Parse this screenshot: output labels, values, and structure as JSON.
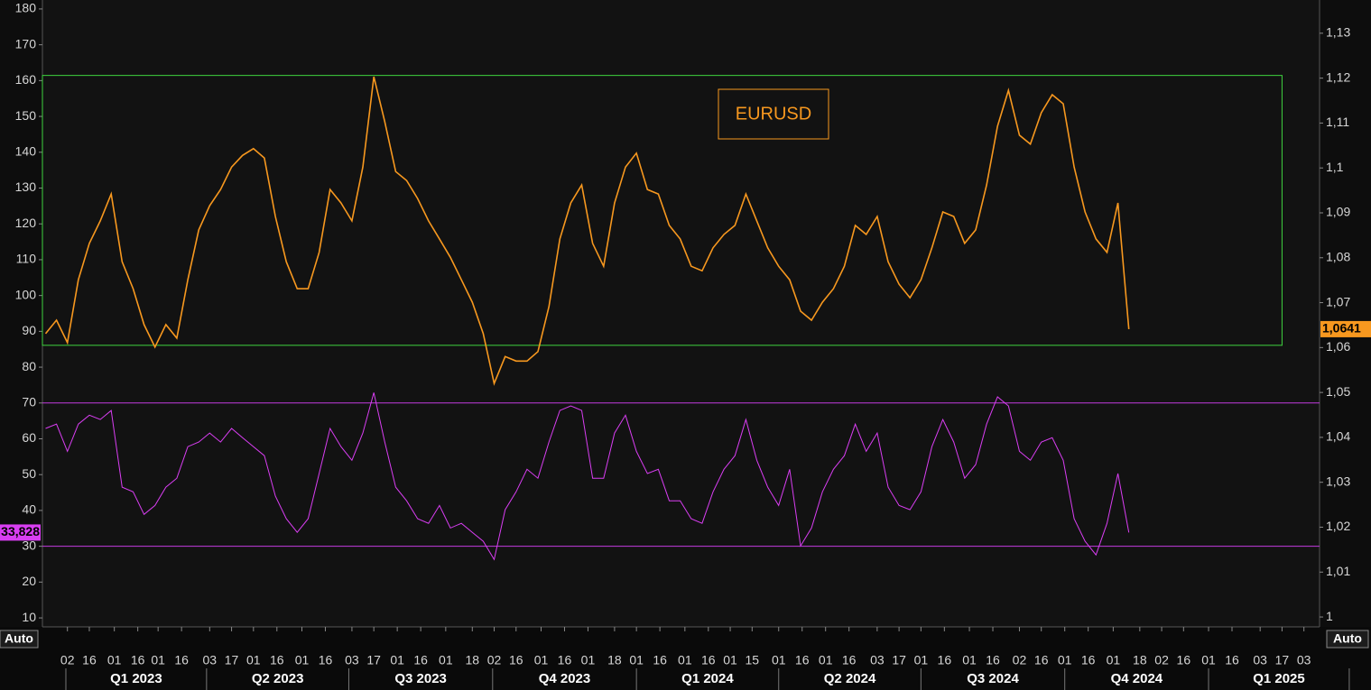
{
  "chart_data": {
    "type": "line",
    "x": [
      "2022-12-19",
      "2022-12-26",
      "2023-01-02",
      "2023-01-09",
      "2023-01-16",
      "2023-01-23",
      "2023-01-30",
      "2023-02-06",
      "2023-02-13",
      "2023-02-20",
      "2023-02-27",
      "2023-03-06",
      "2023-03-13",
      "2023-03-20",
      "2023-03-27",
      "2023-04-03",
      "2023-04-10",
      "2023-04-17",
      "2023-04-24",
      "2023-05-01",
      "2023-05-08",
      "2023-05-15",
      "2023-05-22",
      "2023-05-29",
      "2023-06-05",
      "2023-06-12",
      "2023-06-19",
      "2023-06-26",
      "2023-07-03",
      "2023-07-10",
      "2023-07-17",
      "2023-07-24",
      "2023-07-31",
      "2023-08-07",
      "2023-08-14",
      "2023-08-21",
      "2023-08-28",
      "2023-09-04",
      "2023-09-11",
      "2023-09-18",
      "2023-09-25",
      "2023-10-02",
      "2023-10-09",
      "2023-10-16",
      "2023-10-23",
      "2023-10-30",
      "2023-11-06",
      "2023-11-13",
      "2023-11-20",
      "2023-11-27",
      "2023-12-04",
      "2023-12-11",
      "2023-12-18",
      "2023-12-25",
      "2024-01-01",
      "2024-01-08",
      "2024-01-15",
      "2024-01-22",
      "2024-01-29",
      "2024-02-05",
      "2024-02-12",
      "2024-02-19",
      "2024-02-26",
      "2024-03-04",
      "2024-03-11",
      "2024-03-18",
      "2024-03-25",
      "2024-04-01",
      "2024-04-08",
      "2024-04-15",
      "2024-04-22",
      "2024-04-29",
      "2024-05-06",
      "2024-05-13",
      "2024-05-20",
      "2024-05-27",
      "2024-06-03",
      "2024-06-10",
      "2024-06-17",
      "2024-06-24",
      "2024-07-01",
      "2024-07-08",
      "2024-07-15",
      "2024-07-22",
      "2024-07-29",
      "2024-08-05",
      "2024-08-12",
      "2024-08-19",
      "2024-08-26",
      "2024-09-02",
      "2024-09-09",
      "2024-09-16",
      "2024-09-23",
      "2024-09-30",
      "2024-10-07",
      "2024-10-14",
      "2024-10-21",
      "2024-10-28",
      "2024-11-04",
      "2024-11-11"
    ],
    "series": [
      {
        "name": "EURUSD",
        "color": "#f7981f",
        "axis": "y2",
        "last_label": "1,0641",
        "values": [
          1.0631,
          1.0661,
          1.0611,
          1.0751,
          1.0832,
          1.0882,
          1.0942,
          1.0791,
          1.0731,
          1.0651,
          1.0601,
          1.0651,
          1.0621,
          1.0751,
          1.0862,
          1.0916,
          1.0952,
          1.1002,
          1.1028,
          1.1043,
          1.1022,
          1.0892,
          1.0791,
          1.0731,
          1.0731,
          1.0812,
          1.0952,
          1.0922,
          1.0882,
          1.1002,
          1.1203,
          1.1103,
          1.0992,
          1.0972,
          1.0932,
          1.0882,
          1.0842,
          1.0801,
          1.0751,
          1.0701,
          1.0631,
          1.052,
          1.058,
          1.057,
          1.057,
          1.0591,
          1.0691,
          1.0842,
          1.0922,
          1.0962,
          1.0832,
          1.0781,
          1.0922,
          1.1002,
          1.1033,
          1.0952,
          1.0942,
          1.0872,
          1.0842,
          1.0781,
          1.0771,
          1.0822,
          1.0852,
          1.0872,
          1.0942,
          1.0882,
          1.0822,
          1.0781,
          1.0751,
          1.0681,
          1.0661,
          1.0701,
          1.0731,
          1.0781,
          1.0872,
          1.0852,
          1.0892,
          1.0791,
          1.0741,
          1.0711,
          1.0751,
          1.0822,
          1.0902,
          1.0892,
          1.0832,
          1.0862,
          1.0962,
          1.1093,
          1.1173,
          1.1073,
          1.1053,
          1.1123,
          1.1163,
          1.1143,
          1.1002,
          1.0902,
          1.0842,
          1.0812,
          1.0922,
          1.0641
        ]
      },
      {
        "color": "#d93ef2",
        "axis": "y",
        "last_label": "33,828",
        "values": [
          62.9,
          64.1,
          56.5,
          64.1,
          66.6,
          65.4,
          67.9,
          46.5,
          45.2,
          38.9,
          41.4,
          46.5,
          49.0,
          57.8,
          59.1,
          61.6,
          59.1,
          62.9,
          60.3,
          57.8,
          55.3,
          44.0,
          37.7,
          33.9,
          37.7,
          50.3,
          62.9,
          57.8,
          54.0,
          61.6,
          72.9,
          59.1,
          46.5,
          42.7,
          37.7,
          36.4,
          41.4,
          35.1,
          36.4,
          33.9,
          31.4,
          26.3,
          40.2,
          45.2,
          51.5,
          49.0,
          59.1,
          67.9,
          69.2,
          67.9,
          49.0,
          49.0,
          61.6,
          66.6,
          56.5,
          50.3,
          51.5,
          42.7,
          42.7,
          37.7,
          36.4,
          45.2,
          51.5,
          55.3,
          65.4,
          54.0,
          46.5,
          41.4,
          51.5,
          30.1,
          35.1,
          45.2,
          51.5,
          55.3,
          64.1,
          56.5,
          61.6,
          46.5,
          41.4,
          40.2,
          45.2,
          57.8,
          65.4,
          59.1,
          49.0,
          52.8,
          64.1,
          71.7,
          69.2,
          56.5,
          54.0,
          59.1,
          60.3,
          54.0,
          37.7,
          31.4,
          27.6,
          36.4,
          50.3,
          33.828
        ]
      }
    ],
    "xlim": [
      "2022-12-17",
      "2025-03-13"
    ],
    "xticks": [
      {
        "value": "2023-01-02",
        "label": "02"
      },
      {
        "value": "2023-01-16",
        "label": "16"
      },
      {
        "value": "2023-02-01",
        "label": "01"
      },
      {
        "value": "2023-02-16",
        "label": "16"
      },
      {
        "value": "2023-03-01",
        "label": "01"
      },
      {
        "value": "2023-03-16",
        "label": "16"
      },
      {
        "value": "2023-04-03",
        "label": "03"
      },
      {
        "value": "2023-04-17",
        "label": "17"
      },
      {
        "value": "2023-05-01",
        "label": "01"
      },
      {
        "value": "2023-05-16",
        "label": "16"
      },
      {
        "value": "2023-06-01",
        "label": "01"
      },
      {
        "value": "2023-06-16",
        "label": "16"
      },
      {
        "value": "2023-07-03",
        "label": "03"
      },
      {
        "value": "2023-07-17",
        "label": "17"
      },
      {
        "value": "2023-08-01",
        "label": "01"
      },
      {
        "value": "2023-08-16",
        "label": "16"
      },
      {
        "value": "2023-09-01",
        "label": "01"
      },
      {
        "value": "2023-09-18",
        "label": "18"
      },
      {
        "value": "2023-10-02",
        "label": "02"
      },
      {
        "value": "2023-10-16",
        "label": "16"
      },
      {
        "value": "2023-11-01",
        "label": "01"
      },
      {
        "value": "2023-11-16",
        "label": "16"
      },
      {
        "value": "2023-12-01",
        "label": "01"
      },
      {
        "value": "2023-12-18",
        "label": "18"
      },
      {
        "value": "2024-01-01",
        "label": "01"
      },
      {
        "value": "2024-01-16",
        "label": "16"
      },
      {
        "value": "2024-02-01",
        "label": "01"
      },
      {
        "value": "2024-02-16",
        "label": "16"
      },
      {
        "value": "2024-03-01",
        "label": "01"
      },
      {
        "value": "2024-03-15",
        "label": "15"
      },
      {
        "value": "2024-04-01",
        "label": "01"
      },
      {
        "value": "2024-04-16",
        "label": "16"
      },
      {
        "value": "2024-05-01",
        "label": "01"
      },
      {
        "value": "2024-05-16",
        "label": "16"
      },
      {
        "value": "2024-06-03",
        "label": "03"
      },
      {
        "value": "2024-06-17",
        "label": "17"
      },
      {
        "value": "2024-07-01",
        "label": "01"
      },
      {
        "value": "2024-07-16",
        "label": "16"
      },
      {
        "value": "2024-08-01",
        "label": "01"
      },
      {
        "value": "2024-08-16",
        "label": "16"
      },
      {
        "value": "2024-09-02",
        "label": "02"
      },
      {
        "value": "2024-09-16",
        "label": "16"
      },
      {
        "value": "2024-10-01",
        "label": "01"
      },
      {
        "value": "2024-10-16",
        "label": "16"
      },
      {
        "value": "2024-11-01",
        "label": "01"
      },
      {
        "value": "2024-11-18",
        "label": "18"
      },
      {
        "value": "2024-12-02",
        "label": "02"
      },
      {
        "value": "2024-12-16",
        "label": "16"
      },
      {
        "value": "2025-01-01",
        "label": "01"
      },
      {
        "value": "2025-01-16",
        "label": "16"
      },
      {
        "value": "2025-02-03",
        "label": "03"
      },
      {
        "value": "2025-02-17",
        "label": "17"
      },
      {
        "value": "2025-03-03",
        "label": "03"
      }
    ],
    "quarters": [
      {
        "value": "2023-01-01",
        "label": "Q1 2023"
      },
      {
        "value": "2023-04-01",
        "label": "Q2 2023"
      },
      {
        "value": "2023-07-01",
        "label": "Q3 2023"
      },
      {
        "value": "2023-10-01",
        "label": "Q4 2023"
      },
      {
        "value": "2024-01-01",
        "label": "Q1 2024"
      },
      {
        "value": "2024-04-01",
        "label": "Q2 2024"
      },
      {
        "value": "2024-07-01",
        "label": "Q3 2024"
      },
      {
        "value": "2024-10-01",
        "label": "Q4 2024"
      },
      {
        "value": "2025-01-01",
        "label": "Q1 2025"
      },
      {
        "value": "2025-04-01"
      }
    ],
    "ylim": [
      7.5,
      182.5
    ],
    "yticks": [
      10,
      20,
      30,
      40,
      50,
      60,
      70,
      80,
      90,
      100,
      110,
      120,
      130,
      140,
      150,
      160,
      170,
      180
    ],
    "y2lim": [
      0.9978,
      1.1374
    ],
    "y2ticks": [
      1,
      {
        "value": 1.01,
        "label": "1,01"
      },
      {
        "value": 1.02,
        "label": "1,02"
      },
      {
        "value": 1.03,
        "label": "1,03"
      },
      {
        "value": 1.04,
        "label": "1,04"
      },
      {
        "value": 1.05,
        "label": "1,05"
      },
      {
        "value": 1.06,
        "label": "1,06"
      },
      {
        "value": 1.07,
        "label": "1,07"
      },
      {
        "value": 1.08,
        "label": "1,08"
      },
      {
        "value": 1.09,
        "label": "1,09"
      },
      {
        "value": 1.1,
        "label": "1,1"
      },
      {
        "value": 1.11,
        "label": "1,11"
      },
      {
        "value": 1.12,
        "label": "1,12"
      },
      {
        "value": 1.13,
        "label": "1,13"
      }
    ],
    "reference_lines": {
      "axis": "y",
      "color": "#c43be0",
      "values": [
        70,
        30
      ]
    },
    "highlight_box": {
      "axis": "y2",
      "color": "#3fd33f",
      "y2": [
        1.0605,
        1.1206
      ],
      "x": [
        "2022-12-17",
        "2025-02-17"
      ]
    },
    "buttons": {
      "left": "Auto",
      "right": "Auto"
    }
  }
}
